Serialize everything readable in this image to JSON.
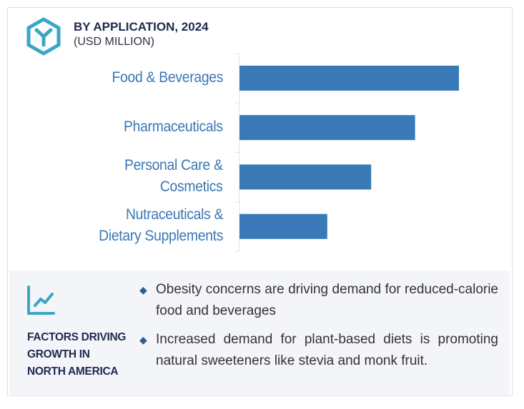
{
  "header": {
    "title": "BY APPLICATION, 2024",
    "subtitle": "(USD MILLION)",
    "logo_icon": "hexagon-y-logo-icon",
    "logo_color": "#3aa6c4"
  },
  "chart_data": {
    "type": "bar",
    "orientation": "horizontal",
    "title": "BY APPLICATION, 2024",
    "ylabel": "(USD MILLION)",
    "categories": [
      "Food & Beverages",
      "Pharmaceuticals",
      "Personal Care & Cosmetics",
      "Nutraceuticals & Dietary Supplements"
    ],
    "category_lines": [
      [
        "Food & Beverages"
      ],
      [
        "Pharmaceuticals"
      ],
      [
        "Personal Care &",
        "Cosmetics"
      ],
      [
        "Nutraceuticals &",
        "Dietary Supplements"
      ]
    ],
    "values": [
      1.0,
      0.8,
      0.6,
      0.4
    ],
    "value_unit": "relative to largest bar (no axis values printed)",
    "xlim": [
      0,
      1.0
    ],
    "grid": false,
    "bar_color": "#3a7ab8",
    "label_color": "#3a77b4"
  },
  "factors": {
    "icon": "trend-line-chart-icon",
    "heading_lines": [
      "FACTORS DRIVING",
      "GROWTH IN",
      "NORTH AMERICA"
    ],
    "bullets": [
      "Obesity concerns are driving demand for reduced-calorie food and beverages",
      "Increased demand for plant-based diets is promoting natural sweeteners like stevia and monk fruit."
    ],
    "bullet_icon": "diamond-bullet-icon"
  }
}
